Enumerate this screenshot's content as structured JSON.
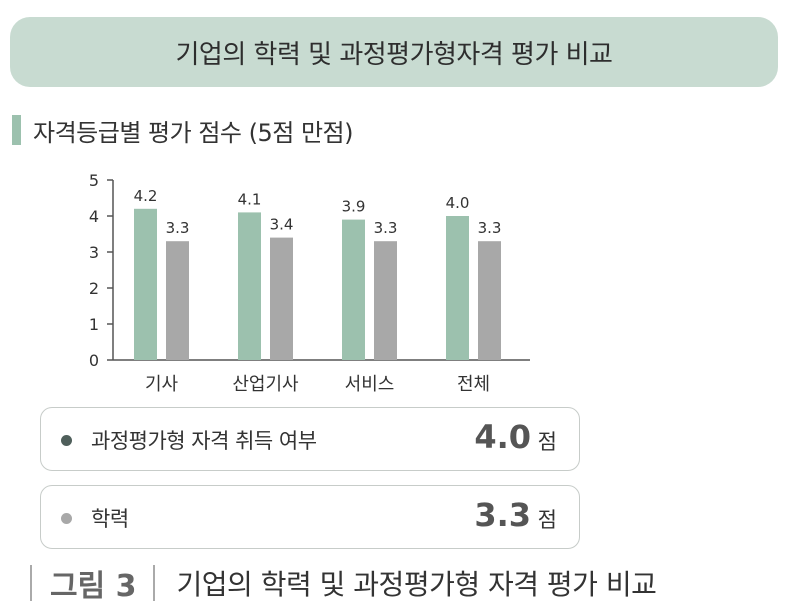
{
  "header": {
    "title": "기업의 학력 및 과정평가형자격 평가 비교"
  },
  "subtitle": "자격등급별 평가 점수 (5점 만점)",
  "chart_data": {
    "type": "bar",
    "categories": [
      "기사",
      "산업기사",
      "서비스",
      "전체"
    ],
    "series": [
      {
        "name": "과정평가형 자격 취득 여부",
        "values": [
          4.2,
          4.1,
          3.9,
          4.0
        ],
        "labels": [
          "4.2",
          "4.1",
          "3.9",
          "4.0"
        ],
        "color": "#9cc1ae"
      },
      {
        "name": "학력",
        "values": [
          3.3,
          3.4,
          3.3,
          3.3
        ],
        "labels": [
          "3.3",
          "3.4",
          "3.3",
          "3.3"
        ],
        "color": "#a8a8a8"
      }
    ],
    "ylim": [
      0,
      5
    ],
    "yticks": [
      "0",
      "1",
      "2",
      "3",
      "4",
      "5"
    ],
    "grid": false
  },
  "legend": [
    {
      "label": "과정평가형 자격 취득 여부",
      "value": "4.0",
      "unit": "점",
      "color": "#4f5f5b"
    },
    {
      "label": "학력",
      "value": "3.3",
      "unit": "점",
      "color": "#a8a8a8"
    }
  ],
  "caption": {
    "figure": "그림 3",
    "text": "기업의 학력 및 과정평가형 자격 평가 비교"
  }
}
